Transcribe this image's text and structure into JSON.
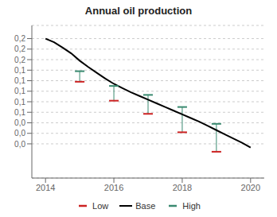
{
  "chart_data": {
    "type": "line",
    "title": "Annual oil production",
    "xlim": [
      2013.6,
      2020.4
    ],
    "ylim": [
      -0.065,
      0.225
    ],
    "xticks": [
      2014,
      2016,
      2018,
      2020
    ],
    "yticks": [
      {
        "value": 0.2,
        "label": "0,2"
      },
      {
        "value": 0.18,
        "label": "0,2"
      },
      {
        "value": 0.16,
        "label": "0,2"
      },
      {
        "value": 0.14,
        "label": "0,1"
      },
      {
        "value": 0.12,
        "label": "0,1"
      },
      {
        "value": 0.1,
        "label": "0,1"
      },
      {
        "value": 0.08,
        "label": "0,1"
      },
      {
        "value": 0.06,
        "label": "0,1"
      },
      {
        "value": 0.04,
        "label": "0,0"
      },
      {
        "value": 0.02,
        "label": "0,0"
      },
      {
        "value": 0.0,
        "label": "0,0"
      }
    ],
    "grid": true,
    "legend": "bottom",
    "series": [
      {
        "name": "Low",
        "type": "scatter",
        "marker": "dash",
        "color": "#cc2222",
        "x": [
          2015,
          2016,
          2017,
          2018,
          2019
        ],
        "values": [
          0.118,
          0.082,
          0.057,
          0.022,
          -0.015
        ]
      },
      {
        "name": "Base",
        "type": "line",
        "color": "#000000",
        "x": [
          2014,
          2014.25,
          2014.5,
          2014.75,
          2015,
          2015.25,
          2015.5,
          2015.75,
          2016,
          2016.25,
          2016.5,
          2016.75,
          2017,
          2017.25,
          2017.5,
          2017.75,
          2018,
          2018.25,
          2018.5,
          2018.75,
          2019,
          2019.25,
          2019.5,
          2019.75,
          2020
        ],
        "values": [
          0.2,
          0.193,
          0.183,
          0.172,
          0.158,
          0.146,
          0.135,
          0.124,
          0.114,
          0.106,
          0.098,
          0.091,
          0.084,
          0.077,
          0.07,
          0.063,
          0.056,
          0.049,
          0.042,
          0.034,
          0.026,
          0.018,
          0.01,
          0.002,
          -0.007
        ]
      },
      {
        "name": "High",
        "type": "scatter",
        "marker": "dash",
        "color": "#3a8a70",
        "x": [
          2015,
          2016,
          2017,
          2018,
          2019
        ],
        "values": [
          0.138,
          0.11,
          0.093,
          0.07,
          0.038
        ]
      }
    ]
  }
}
